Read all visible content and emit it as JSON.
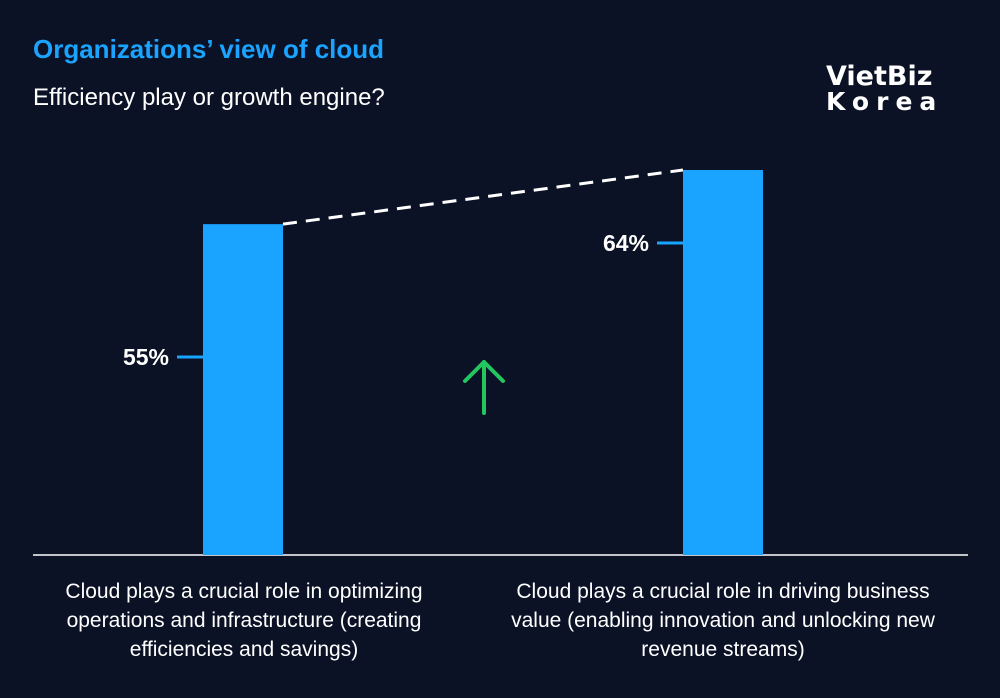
{
  "header": {
    "title": "Organizations’ view of cloud",
    "subtitle": "Efficiency play or growth engine?"
  },
  "logo": {
    "line1": "VietBiz",
    "line2": "Korea"
  },
  "colors": {
    "background": "#0b1226",
    "bar": "#1aa3ff",
    "arrow": "#22c55e",
    "text": "#ffffff",
    "dashed_line": "#ffffff"
  },
  "chart_data": {
    "type": "bar",
    "title": "Organizations’ view of cloud",
    "subtitle": "Efficiency play or growth engine?",
    "categories": [
      "Cloud plays a crucial role in optimizing operations and infrastructure (creating efficiencies and savings)",
      "Cloud plays a crucial role in driving business value (enabling innovation and unlocking new revenue streams)"
    ],
    "values": [
      55,
      64
    ],
    "value_labels": [
      "55%",
      "64%"
    ],
    "unit": "%",
    "ylim": [
      0,
      100
    ],
    "grid": false,
    "annotations": [
      "dashed connector between bar tops",
      "green upward arrow indicating increase"
    ]
  }
}
